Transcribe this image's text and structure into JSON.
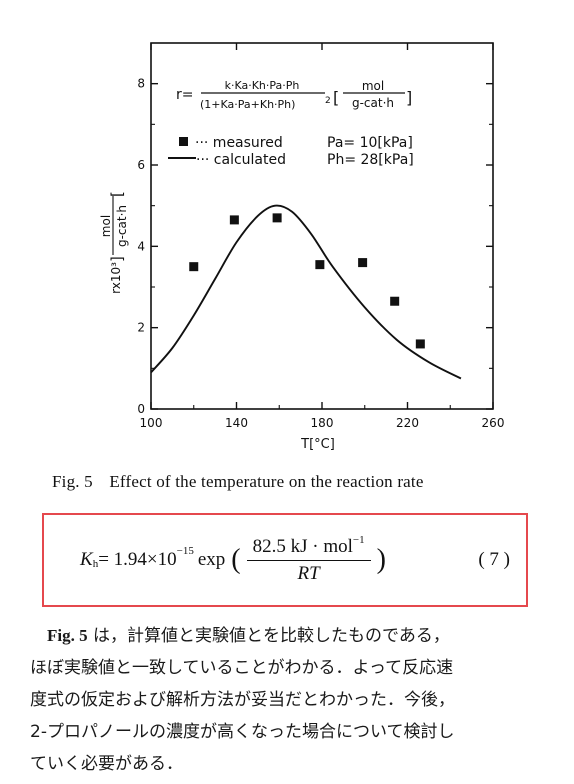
{
  "figure": {
    "caption_number": "Fig. 5",
    "caption_text": "Effect of the temperature on the reaction rate"
  },
  "chart_data": {
    "type": "scatter",
    "rate_equation": {
      "lhs": "r=",
      "numerator": "k·Ka·Kh·Pa·Ph",
      "denominator": "(1+Ka·Pa+Kh·Ph)",
      "denominator_power": "2",
      "units_numerator": "mol",
      "units_denominator": "g-cat·h"
    },
    "legend": [
      {
        "symbol": "square",
        "label": "··· measured"
      },
      {
        "symbol": "line",
        "label": "··· calculated"
      }
    ],
    "conditions": [
      {
        "label": "Pa= 10[kPa]"
      },
      {
        "label": "Ph= 28[kPa]"
      }
    ],
    "xlabel": "T[°C]",
    "ylabel": "rx10³",
    "ylabel_units_numerator": "mol",
    "ylabel_units_denominator": "g-cat·h",
    "xlim": [
      100,
      260
    ],
    "ylim": [
      0,
      9
    ],
    "xticks": [
      "100",
      "140",
      "180",
      "220",
      "260"
    ],
    "yticks": [
      "0",
      "2",
      "4",
      "6",
      "8"
    ],
    "grid": false,
    "series": [
      {
        "name": "measured",
        "points": [
          {
            "x": 120,
            "y": 3.5
          },
          {
            "x": 139,
            "y": 4.65
          },
          {
            "x": 159,
            "y": 4.7
          },
          {
            "x": 179,
            "y": 3.55
          },
          {
            "x": 199,
            "y": 3.6
          },
          {
            "x": 214,
            "y": 2.65
          },
          {
            "x": 226,
            "y": 1.6
          }
        ]
      },
      {
        "name": "calculated",
        "points": [
          {
            "x": 100,
            "y": 0.9
          },
          {
            "x": 110,
            "y": 1.5
          },
          {
            "x": 120,
            "y": 2.3
          },
          {
            "x": 130,
            "y": 3.2
          },
          {
            "x": 140,
            "y": 4.1
          },
          {
            "x": 150,
            "y": 4.75
          },
          {
            "x": 158,
            "y": 5.0
          },
          {
            "x": 166,
            "y": 4.85
          },
          {
            "x": 175,
            "y": 4.3
          },
          {
            "x": 185,
            "y": 3.5
          },
          {
            "x": 200,
            "y": 2.5
          },
          {
            "x": 215,
            "y": 1.7
          },
          {
            "x": 230,
            "y": 1.15
          },
          {
            "x": 245,
            "y": 0.75
          }
        ]
      }
    ]
  },
  "equation": {
    "lhs_symbol": "K",
    "lhs_subscript": "h",
    "equals_coefficient": "= 1.94×10",
    "exponent": "−15",
    "function": " exp",
    "numerator": "82.5 kJ · mol",
    "numerator_exponent": "−1",
    "denominator": "RT",
    "number": "( 7 )"
  },
  "paragraph": {
    "ref": "Fig. 5",
    "lines": [
      " は，計算値と実験値とを比較したものである，",
      "ほぼ実験値と一致していることがわかる．よって反応速",
      "度式の仮定および解析方法が妥当だとわかった．今後，",
      " 2-プロパノールの濃度が高くなった場合について検討し",
      "ていく必要がある．"
    ]
  }
}
